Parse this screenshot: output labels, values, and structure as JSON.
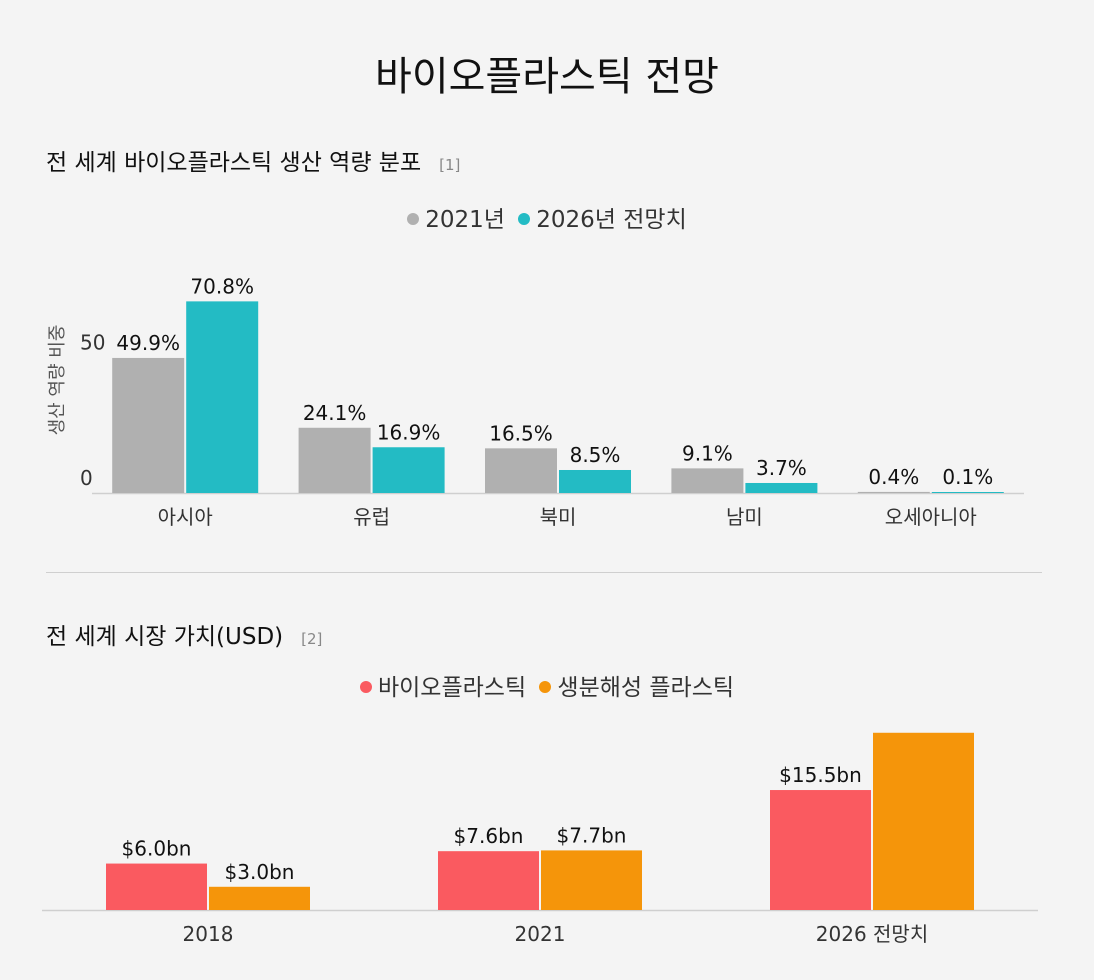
{
  "title": "바이오플라스틱 전망",
  "chart_data": [
    {
      "type": "bar",
      "title": "전 세계 바이오플라스틱 생산 역량 분포",
      "ref": "[1]",
      "ylabel": "생산 역량 비중",
      "xlabel": "",
      "yticks": [
        0,
        50
      ],
      "ylim": [
        0,
        75
      ],
      "categories": [
        "아시아",
        "유럽",
        "북미",
        "남미",
        "오세아니아"
      ],
      "series": [
        {
          "name": "2021년",
          "color": "#b0b0b0",
          "values": [
            49.9,
            24.1,
            16.5,
            9.1,
            0.4
          ],
          "labels": [
            "49.9%",
            "24.1%",
            "16.5%",
            "9.1%",
            "0.4%"
          ]
        },
        {
          "name": "2026년 전망치",
          "color": "#23bbc4",
          "values": [
            70.8,
            16.9,
            8.5,
            3.7,
            0.1
          ],
          "labels": [
            "70.8%",
            "16.9%",
            "8.5%",
            "3.7%",
            "0.1%"
          ]
        }
      ]
    },
    {
      "type": "bar",
      "title": "전 세계 시장 가치(USD)",
      "ref": "[2]",
      "ylabel": "",
      "xlabel": "",
      "ylim": [
        0,
        23
      ],
      "categories": [
        "2018",
        "2021",
        "2026 전망치"
      ],
      "series": [
        {
          "name": "바이오플라스틱",
          "color": "#fa5a60",
          "values": [
            6.0,
            7.6,
            15.5
          ],
          "labels": [
            "$6.0bn",
            "$7.6bn",
            "$15.5bn"
          ]
        },
        {
          "name": "생분해성 플라스틱",
          "color": "#f5950a",
          "values": [
            3.0,
            7.7,
            22.9
          ],
          "labels": [
            "$3.0bn",
            "$7.7bn",
            ""
          ]
        }
      ]
    }
  ]
}
